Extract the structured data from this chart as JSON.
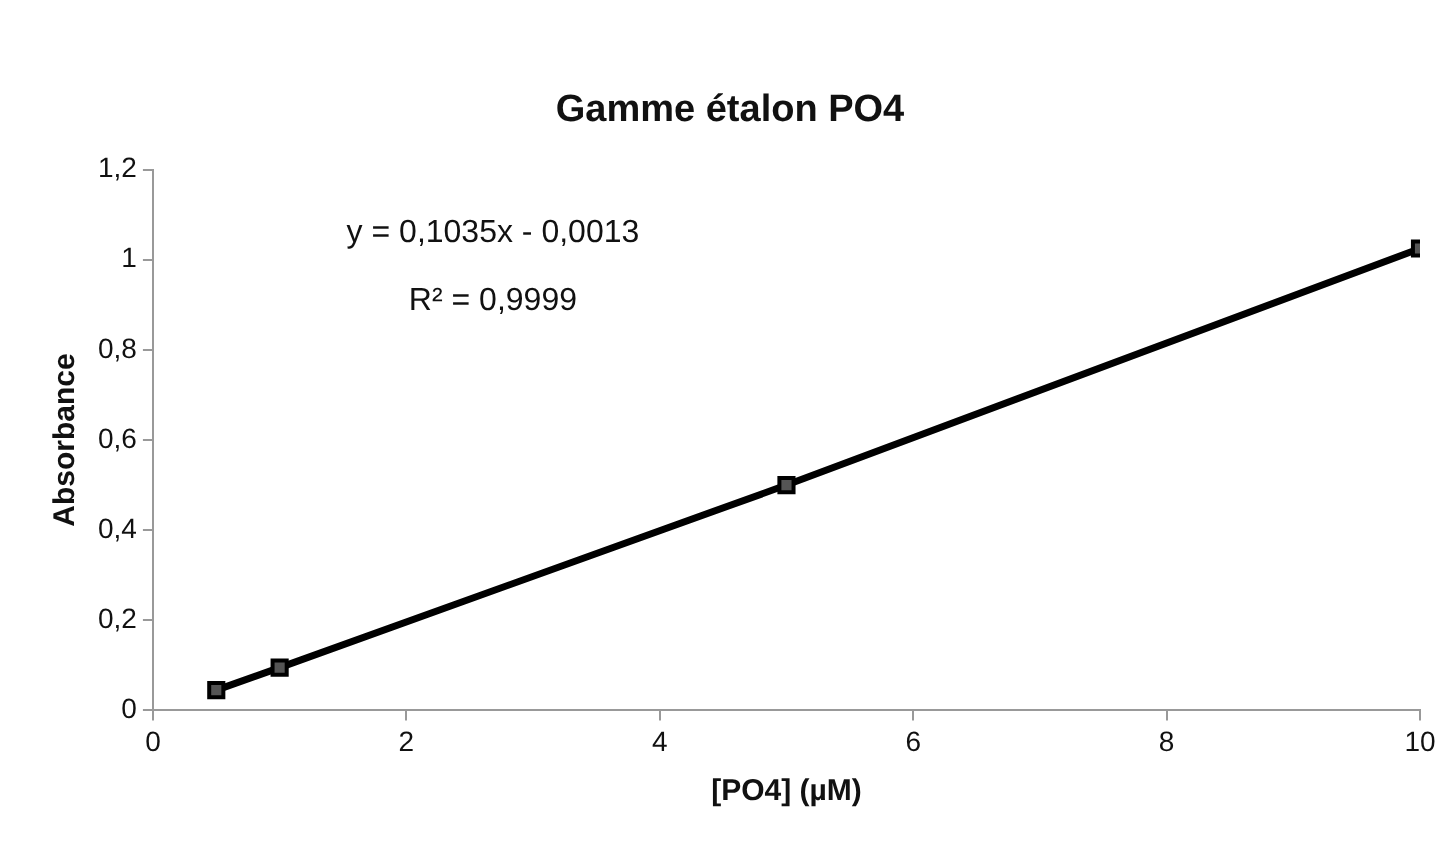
{
  "chart_data": {
    "type": "line",
    "title": "Gamme étalon PO4",
    "xlabel": "[PO4] (µM)",
    "ylabel": "Absorbance",
    "x": [
      0.5,
      1,
      5,
      10
    ],
    "series": [
      {
        "color": "#000000",
        "values": [
          0.045,
          0.095,
          0.5,
          1.025
        ]
      }
    ],
    "xlim": [
      0,
      10
    ],
    "xticks": [
      0,
      2,
      4,
      6,
      8,
      10
    ],
    "ylim": [
      0,
      1.2
    ],
    "yticks": [
      0,
      {
        "value": 0.2,
        "label": "0,2"
      },
      {
        "value": 0.4,
        "label": "0,4"
      },
      {
        "value": 0.6,
        "label": "0,6"
      },
      {
        "value": 0.8,
        "label": "0,8"
      },
      1,
      {
        "value": 1.2,
        "label": "1,2"
      }
    ],
    "grid": false,
    "legend": false,
    "marker": "square",
    "line_style": "solid",
    "annotations": [
      "y = 0,1035x - 0,0013",
      "R² = 0,9999"
    ]
  }
}
